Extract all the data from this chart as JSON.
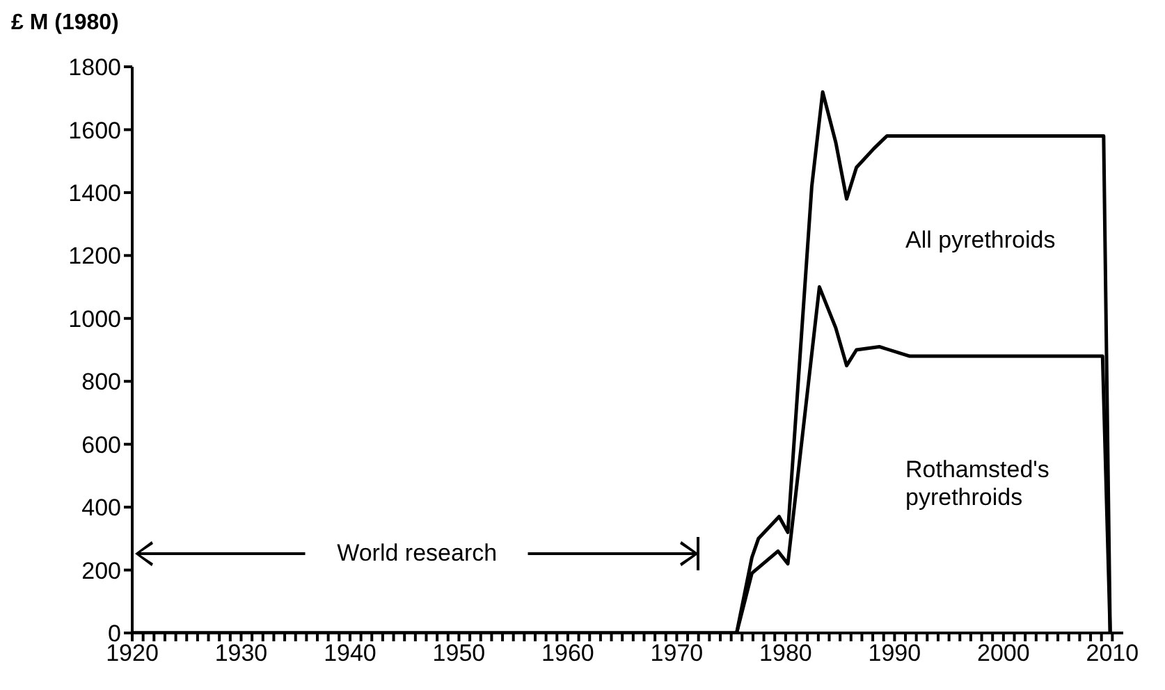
{
  "chart_data": {
    "type": "line",
    "ylabel": "£ M (1980)",
    "annotations": [
      "World research"
    ],
    "xlim": [
      1920,
      2011
    ],
    "ylim": [
      0,
      1800
    ],
    "yticks": [
      0,
      200,
      400,
      600,
      800,
      1000,
      1200,
      1400,
      1600,
      1800
    ],
    "xticks": [
      1920,
      {
        "value": 1921,
        "label": null
      },
      {
        "value": 1922,
        "label": null
      },
      {
        "value": 1923,
        "label": null
      },
      {
        "value": 1924,
        "label": null
      },
      {
        "value": 1925,
        "label": null
      },
      {
        "value": 1926,
        "label": null
      },
      {
        "value": 1927,
        "label": null
      },
      {
        "value": 1928,
        "label": null
      },
      {
        "value": 1929,
        "label": null
      },
      1930,
      {
        "value": 1931,
        "label": null
      },
      {
        "value": 1932,
        "label": null
      },
      {
        "value": 1933,
        "label": null
      },
      {
        "value": 1934,
        "label": null
      },
      {
        "value": 1935,
        "label": null
      },
      {
        "value": 1936,
        "label": null
      },
      {
        "value": 1937,
        "label": null
      },
      {
        "value": 1938,
        "label": null
      },
      {
        "value": 1939,
        "label": null
      },
      1940,
      {
        "value": 1941,
        "label": null
      },
      {
        "value": 1942,
        "label": null
      },
      {
        "value": 1943,
        "label": null
      },
      {
        "value": 1944,
        "label": null
      },
      {
        "value": 1945,
        "label": null
      },
      {
        "value": 1946,
        "label": null
      },
      {
        "value": 1947,
        "label": null
      },
      {
        "value": 1948,
        "label": null
      },
      {
        "value": 1949,
        "label": null
      },
      1950,
      {
        "value": 1951,
        "label": null
      },
      {
        "value": 1952,
        "label": null
      },
      {
        "value": 1953,
        "label": null
      },
      {
        "value": 1954,
        "label": null
      },
      {
        "value": 1955,
        "label": null
      },
      {
        "value": 1956,
        "label": null
      },
      {
        "value": 1957,
        "label": null
      },
      {
        "value": 1958,
        "label": null
      },
      {
        "value": 1959,
        "label": null
      },
      1960,
      {
        "value": 1961,
        "label": null
      },
      {
        "value": 1962,
        "label": null
      },
      {
        "value": 1963,
        "label": null
      },
      {
        "value": 1964,
        "label": null
      },
      {
        "value": 1965,
        "label": null
      },
      {
        "value": 1966,
        "label": null
      },
      {
        "value": 1967,
        "label": null
      },
      {
        "value": 1968,
        "label": null
      },
      {
        "value": 1969,
        "label": null
      },
      1970,
      {
        "value": 1971,
        "label": null
      },
      {
        "value": 1972,
        "label": null
      },
      {
        "value": 1973,
        "label": null
      },
      {
        "value": 1974,
        "label": null
      },
      {
        "value": 1975,
        "label": null
      },
      {
        "value": 1976,
        "label": null
      },
      {
        "value": 1977,
        "label": null
      },
      {
        "value": 1978,
        "label": null
      },
      {
        "value": 1979,
        "label": null
      },
      1980,
      {
        "value": 1981,
        "label": null
      },
      {
        "value": 1982,
        "label": null
      },
      {
        "value": 1983,
        "label": null
      },
      {
        "value": 1984,
        "label": null
      },
      {
        "value": 1985,
        "label": null
      },
      {
        "value": 1986,
        "label": null
      },
      {
        "value": 1987,
        "label": null
      },
      {
        "value": 1988,
        "label": null
      },
      {
        "value": 1989,
        "label": null
      },
      1990,
      {
        "value": 1991,
        "label": null
      },
      {
        "value": 1992,
        "label": null
      },
      {
        "value": 1993,
        "label": null
      },
      {
        "value": 1994,
        "label": null
      },
      {
        "value": 1995,
        "label": null
      },
      {
        "value": 1996,
        "label": null
      },
      {
        "value": 1997,
        "label": null
      },
      {
        "value": 1998,
        "label": null
      },
      {
        "value": 1999,
        "label": null
      },
      2000,
      {
        "value": 2001,
        "label": null
      },
      {
        "value": 2002,
        "label": null
      },
      {
        "value": 2003,
        "label": null
      },
      {
        "value": 2004,
        "label": null
      },
      {
        "value": 2005,
        "label": null
      },
      {
        "value": 2006,
        "label": null
      },
      {
        "value": 2007,
        "label": null
      },
      {
        "value": 2008,
        "label": null
      },
      {
        "value": 2009,
        "label": null
      },
      2010
    ],
    "marker": "none",
    "line_style": "solid",
    "series": [
      {
        "name": "All pyrethroids",
        "color": "#000000",
        "x": [
          1920,
          1975.5,
          1976.9,
          1977.5,
          1979.4,
          1980.2,
          1982.4,
          1983.4,
          1984.6,
          1985.6,
          1986.5,
          1988.1,
          1989.3,
          2009.2,
          2009.8
        ],
        "values": [
          0,
          0,
          240,
          300,
          370,
          320,
          1420,
          1720,
          1560,
          1380,
          1480,
          1540,
          1580,
          1580,
          0
        ]
      },
      {
        "name": "Rothamsted's pyrethroids",
        "color": "#000000",
        "x": [
          1920,
          1975.5,
          1976.9,
          1979.3,
          1980.2,
          1983.1,
          1984.6,
          1985.6,
          1986.5,
          1988.6,
          1991.4,
          2009.1,
          2009.8
        ],
        "values": [
          0,
          0,
          190,
          260,
          220,
          1100,
          970,
          850,
          900,
          910,
          880,
          880,
          0
        ]
      }
    ]
  }
}
